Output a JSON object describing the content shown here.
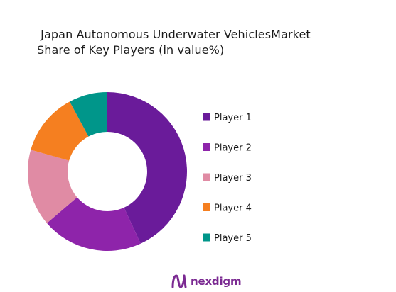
{
  "chart_data": {
    "type": "pie",
    "donut": true,
    "title_line1": " Japan Autonomous Underwater VehiclesMarket",
    "title_line2": "Share of Key Players (in value%)",
    "categories": [
      "Player 1",
      "Player 2",
      "Player 3",
      "Player 4",
      "Player 5"
    ],
    "values": [
      44,
      21,
      16,
      13,
      8
    ],
    "colors": [
      "#6a1b9a",
      "#8e24aa",
      "#e08ba4",
      "#f57f20",
      "#00968a"
    ],
    "legend_position": "right"
  },
  "brand": {
    "name": "nexdigm",
    "color": "#7b2a92"
  }
}
